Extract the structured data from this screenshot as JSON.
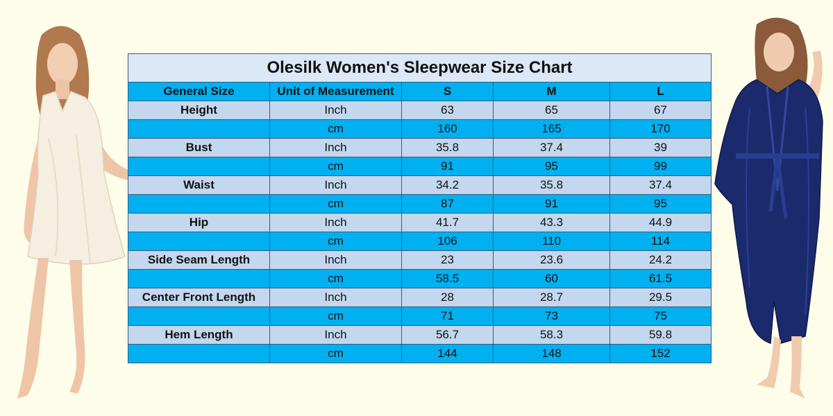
{
  "chart": {
    "title": "Olesilk  Women's Sleepwear Size Chart",
    "headers": [
      "General Size",
      "Unit of Measurement",
      "S",
      "M",
      "L"
    ],
    "rows": [
      {
        "label": "Height",
        "unit": "Inch",
        "values": [
          "63",
          "65",
          "67"
        ]
      },
      {
        "label": "",
        "unit": "cm",
        "values": [
          "160",
          "165",
          "170"
        ]
      },
      {
        "label": "Bust",
        "unit": "Inch",
        "values": [
          "35.8",
          "37.4",
          "39"
        ]
      },
      {
        "label": "",
        "unit": "cm",
        "values": [
          "91",
          "95",
          "99"
        ]
      },
      {
        "label": "Waist",
        "unit": "Inch",
        "values": [
          "34.2",
          "35.8",
          "37.4"
        ]
      },
      {
        "label": "",
        "unit": "cm",
        "values": [
          "87",
          "91",
          "95"
        ]
      },
      {
        "label": "Hip",
        "unit": "Inch",
        "values": [
          "41.7",
          "43.3",
          "44.9"
        ]
      },
      {
        "label": "",
        "unit": "cm",
        "values": [
          "106",
          "110",
          "114"
        ]
      },
      {
        "label": "Side Seam Length",
        "unit": "Inch",
        "values": [
          "23",
          "23.6",
          "24.2"
        ]
      },
      {
        "label": "",
        "unit": "cm",
        "values": [
          "58.5",
          "60",
          "61.5"
        ]
      },
      {
        "label": "Center Front Length",
        "unit": "Inch",
        "values": [
          "28",
          "28.7",
          "29.5"
        ]
      },
      {
        "label": "",
        "unit": "cm",
        "values": [
          "71",
          "73",
          "75"
        ]
      },
      {
        "label": "Hem Length",
        "unit": "Inch",
        "values": [
          "56.7",
          "58.3",
          "59.8"
        ]
      },
      {
        "label": "",
        "unit": "cm",
        "values": [
          "144",
          "148",
          "152"
        ]
      }
    ]
  },
  "colors": {
    "background": "#fdfde9",
    "title_fill": "#dce8f6",
    "header_fill": "#00b0f0",
    "row_light": "#c3d7ee",
    "row_blue": "#00b0f0",
    "border": "#3b5a7a"
  },
  "images": {
    "left_model": "woman-in-ivory-silk-nightgown",
    "right_model": "woman-in-navy-silk-robe"
  }
}
